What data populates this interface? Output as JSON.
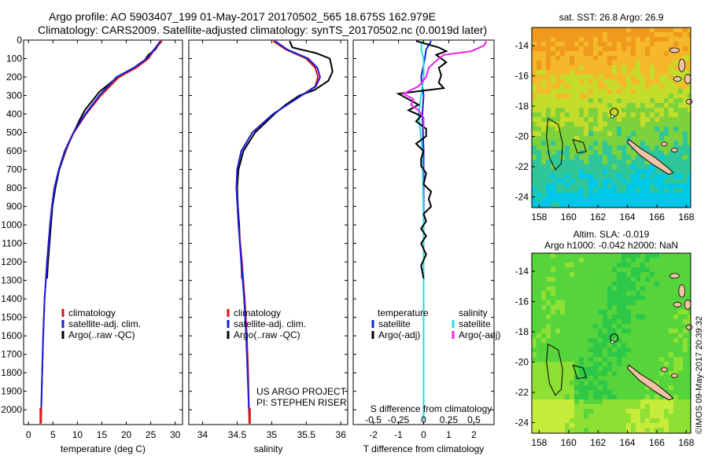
{
  "header": {
    "line1": "Argo profile: AO 5903407_199 01-May-2017 20170502_565 18.675S 162.979E",
    "line2": "Climatology: CARS2009. Satellite-adjusted climatology: synTS_20170502.nc (0.0019d later)"
  },
  "colors": {
    "climatology": "#e01010",
    "satellite": "#1020e0",
    "argo": "#000000",
    "sal_satellite": "#22dddd",
    "sal_argo": "#ee22ee"
  },
  "chart_data": [
    {
      "type": "line",
      "ylabel": "",
      "xlabel": "temperature (deg C)",
      "xlim": [
        -1,
        31.5
      ],
      "ylim": [
        2080,
        0
      ],
      "xticks": [
        "0",
        "5",
        "10",
        "15",
        "20",
        "25",
        "30"
      ],
      "yticks": [
        "0",
        "100",
        "200",
        "300",
        "400",
        "500",
        "600",
        "700",
        "800",
        "900",
        "1000",
        "1100",
        "1200",
        "1300",
        "1400",
        "1500",
        "1600",
        "1700",
        "1800",
        "1900",
        "2000"
      ],
      "legend": [
        "climatology",
        "satellite-adj. clim.",
        "Argo(..raw -QC)"
      ],
      "series": [
        {
          "name": "climatology",
          "color": "#e01010",
          "depth": [
            5,
            50,
            100,
            150,
            200,
            300,
            400,
            500,
            600,
            700,
            800,
            900,
            1000,
            1200,
            1400,
            1600,
            1800,
            2000,
            2060
          ],
          "values": [
            27.3,
            25.8,
            24.5,
            22,
            18.5,
            14.8,
            11.8,
            9.3,
            7.5,
            6.2,
            5.3,
            4.8,
            4.4,
            3.8,
            3.3,
            3,
            2.8,
            2.6,
            2.5
          ]
        },
        {
          "name": "satellite-adj. clim.",
          "color": "#1020e0",
          "depth": [
            5,
            50,
            100,
            150,
            200,
            300,
            400,
            500,
            600,
            700,
            800,
            900,
            1000,
            1200,
            1400,
            1600,
            1800,
            2000,
            2060
          ],
          "values": [
            27,
            25.7,
            24.2,
            21.5,
            18,
            14.5,
            11.6,
            9.2,
            7.4,
            6.2,
            5.3,
            4.8,
            4.4,
            3.8,
            3.3,
            3,
            2.8,
            2.6,
            2.5
          ]
        },
        {
          "name": "Argo(..raw -QC)",
          "color": "#000000",
          "depth": [
            5,
            50,
            80,
            120,
            170,
            220,
            280,
            330,
            380,
            430,
            480,
            530,
            600,
            700,
            800,
            900,
            1000,
            1100,
            1200,
            1290
          ],
          "values": [
            27,
            26,
            24.5,
            23.5,
            20.5,
            17.3,
            14.5,
            13,
            11.5,
            10.5,
            9.6,
            8.7,
            7.6,
            6.3,
            5.5,
            4.9,
            4.6,
            4.3,
            4,
            3.8
          ]
        }
      ]
    },
    {
      "type": "line",
      "xlabel": "salinity",
      "xlim": [
        33.8,
        36.1
      ],
      "ylim": [
        2080,
        0
      ],
      "xticks": [
        "34",
        "34.5",
        "35",
        "35.5",
        "36"
      ],
      "legend": [
        "climatology",
        "satellite-adj. clim.",
        "Argo(..raw -QC)"
      ],
      "annotation": [
        "US ARGO PROJECT",
        "PI: STEPHEN RISER"
      ],
      "series": [
        {
          "name": "climatology",
          "color": "#e01010",
          "depth": [
            5,
            50,
            100,
            150,
            200,
            250,
            300,
            400,
            500,
            600,
            700,
            800,
            1000,
            1200,
            1400,
            1600,
            1800,
            2000,
            2060
          ],
          "values": [
            35.02,
            35.2,
            35.5,
            35.63,
            35.67,
            35.63,
            35.43,
            35.02,
            34.72,
            34.56,
            34.5,
            34.49,
            34.52,
            34.57,
            34.61,
            34.64,
            34.66,
            34.67,
            34.68
          ]
        },
        {
          "name": "satellite-adj. clim.",
          "color": "#1020e0",
          "depth": [
            5,
            50,
            100,
            150,
            200,
            250,
            300,
            400,
            500,
            600,
            700,
            800,
            1000,
            1200,
            1400,
            1600,
            1800,
            2000,
            2060
          ],
          "values": [
            35.05,
            35.22,
            35.53,
            35.66,
            35.7,
            35.64,
            35.43,
            35.02,
            34.72,
            34.56,
            34.5,
            34.49,
            34.52,
            34.56,
            34.6,
            34.63,
            34.65,
            34.67,
            34.68
          ]
        },
        {
          "name": "Argo(..raw -QC)",
          "color": "#000000",
          "depth": [
            5,
            40,
            70,
            100,
            130,
            170,
            220,
            270,
            300,
            350,
            400,
            450,
            500,
            600,
            700,
            800,
            900,
            1000,
            1100,
            1200,
            1290
          ],
          "values": [
            35.26,
            35.3,
            35.64,
            35.84,
            35.86,
            35.88,
            35.82,
            35.62,
            35.4,
            35.2,
            35.04,
            34.9,
            34.76,
            34.59,
            34.52,
            34.5,
            34.51,
            34.53,
            34.54,
            34.56,
            34.57
          ]
        }
      ]
    },
    {
      "type": "line",
      "xlabel": "T difference from climatology",
      "xlabel2": "S difference from climatology",
      "xlim": [
        -2.8,
        2.8
      ],
      "ylim": [
        2080,
        0
      ],
      "xticks": [
        "-2",
        "-1",
        "0",
        "1",
        "2"
      ],
      "xticks2": [
        "-0.5",
        "-0.25",
        "0",
        "0.25",
        "0.5"
      ],
      "legend_titles": [
        "temperature",
        "salinity"
      ],
      "legend": [
        "satellite",
        "Argo(-adj)",
        "satellite",
        "Argo(-adj)"
      ],
      "series": [
        {
          "name": "satellite",
          "color": "#1020e0",
          "depth": [
            5,
            50,
            100,
            200,
            300,
            400,
            600,
            1000,
            1500,
            2060
          ],
          "values": [
            0.3,
            0.1,
            0.05,
            -0.1,
            0,
            -0.05,
            0,
            0,
            0,
            0
          ]
        },
        {
          "name": "Argo(-adj)",
          "color": "#000000",
          "depth": [
            5,
            40,
            60,
            80,
            100,
            120,
            150,
            190,
            230,
            260,
            290,
            320,
            350,
            380,
            410,
            440,
            480,
            520,
            560,
            600,
            640,
            680,
            720,
            780,
            820,
            860,
            900,
            940,
            980,
            1020,
            1060,
            1100,
            1160,
            1220,
            1290
          ],
          "values": [
            -0.3,
            0.6,
            0.9,
            0.5,
            0.7,
            0.9,
            0.6,
            0.7,
            0.6,
            0.8,
            -1,
            -0.6,
            -0.2,
            -0.6,
            -0.1,
            -0.3,
            0.1,
            0.1,
            -0.3,
            0,
            -0.1,
            -0.1,
            0.1,
            0,
            0.3,
            0.2,
            0.3,
            0,
            0.1,
            -0.1,
            0.1,
            -0.1,
            0.1,
            -0.1,
            0
          ]
        },
        {
          "name": "satellite",
          "color": "#22dddd",
          "depth": [
            5,
            50,
            100,
            200,
            300,
            400,
            600,
            1000,
            1500,
            2060
          ],
          "values": [
            -0.05,
            -0.1,
            0,
            0,
            -0.1,
            -0.2,
            -0.05,
            0,
            0,
            0
          ]
        },
        {
          "name": "Argo(-adj)",
          "color": "#ee22ee",
          "depth": [
            5,
            30,
            60,
            80,
            100,
            150,
            200,
            250,
            290,
            320,
            350,
            380,
            420,
            480
          ],
          "values": [
            2.5,
            2.4,
            1.9,
            0.8,
            0.6,
            0.2,
            0.1,
            -0.2,
            -0.8,
            -0.4,
            -0.5,
            -0.2,
            0,
            0
          ]
        }
      ]
    },
    {
      "type": "heatmap",
      "title": "sat. SST: 26.8  Argo: 26.9",
      "xticks": [
        "158",
        "160",
        "162",
        "164",
        "166",
        "168"
      ],
      "yticks": [
        "-14",
        "-16",
        "-18",
        "-20",
        "-22",
        "-24"
      ],
      "xlim": [
        157.5,
        168.3
      ],
      "ylim": [
        -12.8,
        -24.7
      ],
      "colormap": [
        "#00c8e6",
        "#2fc79a",
        "#7bd23d",
        "#c4dd2a",
        "#f5b82a",
        "#f09a1d"
      ],
      "argo_position": [
        162.979,
        -18.675
      ]
    },
    {
      "type": "heatmap",
      "title": "Altim. SLA: -0.019",
      "subtitle": "Argo h1000: -0.042  h2000: NaN",
      "xticks": [
        "158",
        "160",
        "162",
        "164",
        "166",
        "168"
      ],
      "yticks": [
        "-14",
        "-16",
        "-18",
        "-20",
        "-22",
        "-24"
      ],
      "xlim": [
        157.5,
        168.3
      ],
      "ylim": [
        -12.8,
        -24.7
      ],
      "colormap": [
        "#2ec848",
        "#56d43c",
        "#8ee035",
        "#c8ec3a"
      ],
      "argo_position": [
        162.979,
        -18.675
      ]
    }
  ],
  "timestamp": "©IMOS 09-May-2017 20:39:32"
}
